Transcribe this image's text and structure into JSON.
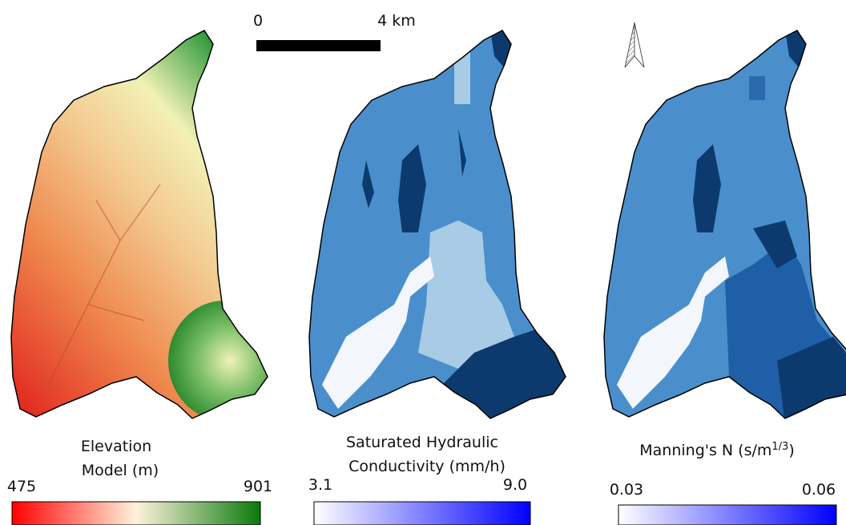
{
  "scale_bar": {
    "start": "0",
    "end": "4 km"
  },
  "panels": [
    {
      "legend_title": [
        "Elevation",
        "Model (m)"
      ],
      "min": "475",
      "max": "901"
    },
    {
      "legend_title": [
        "Saturated Hydraulic",
        "Conductivity (mm/h)"
      ],
      "min": "3.1",
      "max": "9.0"
    },
    {
      "legend_title_parts": [
        "Manning's N (s/m",
        "1/3",
        ")"
      ],
      "min": "0.03",
      "max": "0.06"
    }
  ]
}
